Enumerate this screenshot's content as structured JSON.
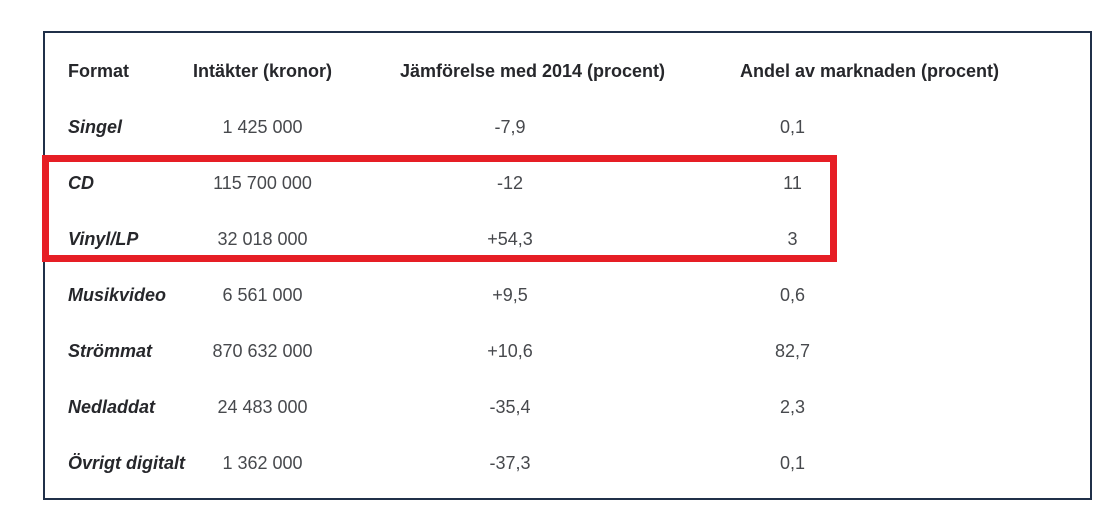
{
  "chart_data": {
    "type": "table",
    "columns": [
      "Format",
      "Intäkter (kronor)",
      "Jämförelse med 2014 (procent)",
      "Andel av marknaden (procent)"
    ],
    "rows": [
      [
        "Singel",
        "1 425 000",
        "-7,9",
        "0,1"
      ],
      [
        "CD",
        "115 700 000",
        "-12",
        "11"
      ],
      [
        "Vinyl/LP",
        "32 018 000",
        "+54,3",
        "3"
      ],
      [
        "Musikvideo",
        "6 561 000",
        "+9,5",
        "0,6"
      ],
      [
        "Strömmat",
        "870 632 000",
        "+10,6",
        "82,7"
      ],
      [
        "Nedladdat",
        "24 483 000",
        "-35,4",
        "2,3"
      ],
      [
        "Övrigt digitalt",
        "1 362 000",
        "-37,3",
        "0,1"
      ]
    ],
    "annotations": [
      {
        "type": "highlight-box",
        "highlighted_rows": [
          "CD",
          "Vinyl/LP"
        ],
        "color": "#e61e25"
      }
    ],
    "layout_hints": {
      "grid": "off",
      "outer_border_color": "#203049",
      "first_column_style": "bold-italic",
      "number_alignment": "center",
      "thousands_separator": "space",
      "decimal_separator": "comma"
    }
  },
  "colors": {
    "header_text": "#26272b",
    "value_text": "#47494d",
    "table_border": "#203049",
    "highlight_red": "#e61e25",
    "background": "#ffffff"
  }
}
